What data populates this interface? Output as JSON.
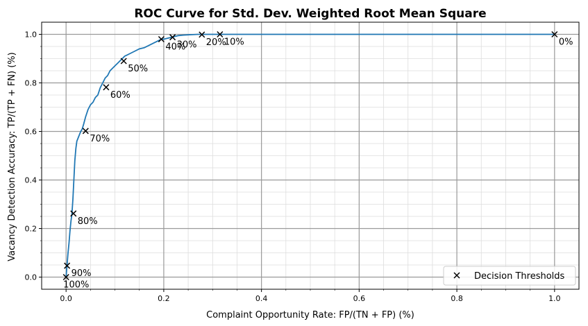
{
  "chart_data": {
    "type": "line",
    "title": "ROC Curve for Std. Dev. Weighted Root Mean Square",
    "xlabel": "Complaint Opportunity Rate: FP/(TN + FP) (%)",
    "ylabel": "Vacancy Detection Accuracy: TP/(TP + FN) (%)",
    "xlim": [
      -0.05,
      1.05
    ],
    "ylim": [
      -0.05,
      1.05
    ],
    "x_ticks": [
      "0.0",
      "0.2",
      "0.4",
      "0.6",
      "0.8",
      "1.0"
    ],
    "y_ticks": [
      "0.0",
      "0.2",
      "0.4",
      "0.6",
      "0.8",
      "1.0"
    ],
    "grid": true,
    "legend_position": "lower-right",
    "line_color": "#1f77b4",
    "marker_color": "#000000",
    "series": [
      {
        "x": [
          0.0,
          0.002,
          0.004,
          0.006,
          0.008,
          0.01,
          0.012,
          0.014,
          0.016,
          0.018,
          0.02,
          0.022,
          0.024,
          0.026,
          0.028,
          0.03,
          0.033,
          0.036,
          0.04,
          0.045,
          0.05,
          0.055,
          0.06,
          0.065,
          0.07,
          0.075,
          0.08,
          0.085,
          0.09,
          0.095,
          0.1,
          0.105,
          0.11,
          0.115,
          0.12,
          0.125,
          0.13,
          0.14,
          0.15,
          0.16,
          0.17,
          0.18,
          0.19,
          0.195,
          0.2,
          0.21,
          0.22,
          0.23,
          0.24,
          0.25,
          0.26,
          0.27,
          0.28,
          0.3,
          0.315,
          0.4,
          0.6,
          0.8,
          1.0
        ],
        "y": [
          0.0,
          0.05,
          0.1,
          0.14,
          0.19,
          0.23,
          0.26,
          0.32,
          0.4,
          0.48,
          0.53,
          0.56,
          0.57,
          0.58,
          0.59,
          0.6,
          0.61,
          0.63,
          0.66,
          0.69,
          0.71,
          0.72,
          0.74,
          0.75,
          0.78,
          0.8,
          0.82,
          0.83,
          0.85,
          0.86,
          0.87,
          0.88,
          0.89,
          0.9,
          0.91,
          0.915,
          0.92,
          0.93,
          0.94,
          0.945,
          0.955,
          0.965,
          0.975,
          0.98,
          0.98,
          0.985,
          0.99,
          0.995,
          0.997,
          0.998,
          0.999,
          1.0,
          1.0,
          1.0,
          1.0,
          1.0,
          1.0,
          1.0,
          1.0
        ]
      }
    ],
    "thresholds": {
      "name": "Decision Thresholds",
      "points": [
        {
          "x": 0.0,
          "y": 0.0,
          "label": "100%"
        },
        {
          "x": 0.002,
          "y": 0.047,
          "label": "90%"
        },
        {
          "x": 0.015,
          "y": 0.262,
          "label": "80%"
        },
        {
          "x": 0.04,
          "y": 0.602,
          "label": "70%"
        },
        {
          "x": 0.082,
          "y": 0.782,
          "label": "60%"
        },
        {
          "x": 0.118,
          "y": 0.89,
          "label": "50%"
        },
        {
          "x": 0.195,
          "y": 0.98,
          "label": "40%"
        },
        {
          "x": 0.218,
          "y": 0.988,
          "label": "30%"
        },
        {
          "x": 0.278,
          "y": 0.999,
          "label": "20%"
        },
        {
          "x": 0.315,
          "y": 1.0,
          "label": "10%"
        },
        {
          "x": 1.0,
          "y": 1.0,
          "label": "0%"
        }
      ]
    }
  }
}
